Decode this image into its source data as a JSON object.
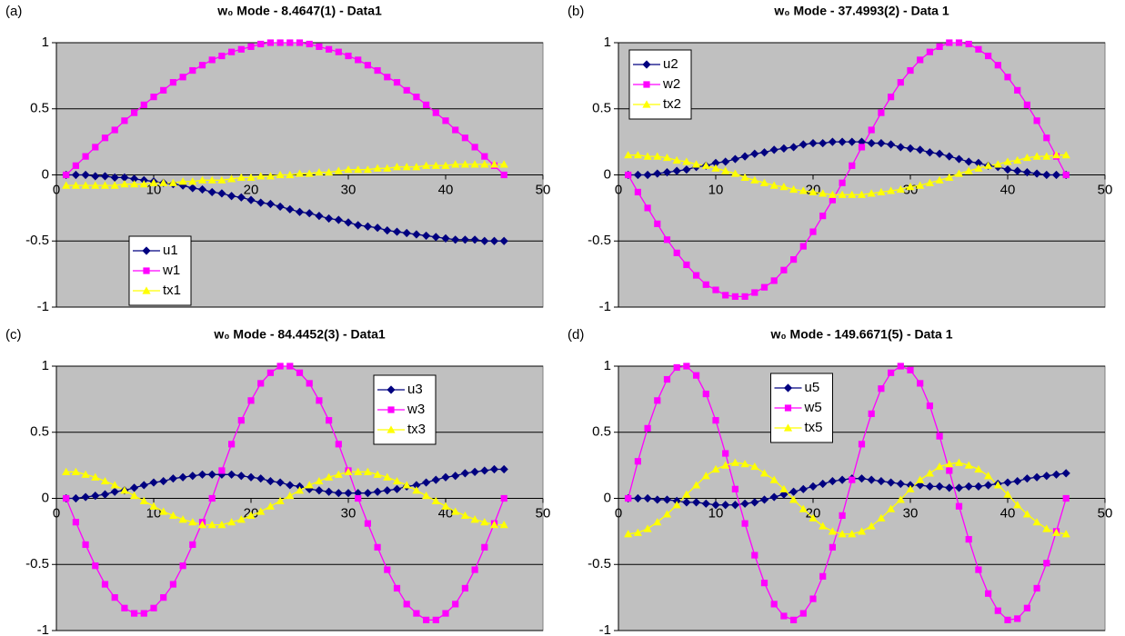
{
  "chart_data": [
    {
      "type": "line",
      "panel_label": "(a)",
      "title": "w₀ Mode - 8.4647(1) - Data1",
      "x": [
        1,
        2,
        3,
        4,
        5,
        6,
        7,
        8,
        9,
        10,
        11,
        12,
        13,
        14,
        15,
        16,
        17,
        18,
        19,
        20,
        21,
        22,
        23,
        24,
        25,
        26,
        27,
        28,
        29,
        30,
        31,
        32,
        33,
        34,
        35,
        36,
        37,
        38,
        39,
        40,
        41,
        42,
        43,
        44,
        45,
        46
      ],
      "series": [
        {
          "name": "u1",
          "color": "#000080",
          "marker": "diamond",
          "values": [
            0,
            0,
            0,
            -0.01,
            -0.01,
            -0.02,
            -0.02,
            -0.03,
            -0.04,
            -0.05,
            -0.06,
            -0.07,
            -0.08,
            -0.1,
            -0.11,
            -0.13,
            -0.14,
            -0.16,
            -0.17,
            -0.19,
            -0.21,
            -0.22,
            -0.24,
            -0.26,
            -0.28,
            -0.29,
            -0.31,
            -0.33,
            -0.34,
            -0.36,
            -0.38,
            -0.39,
            -0.4,
            -0.42,
            -0.43,
            -0.44,
            -0.45,
            -0.46,
            -0.47,
            -0.48,
            -0.49,
            -0.49,
            -0.49,
            -0.5,
            -0.5,
            -0.5
          ]
        },
        {
          "name": "w1",
          "color": "#ff00ff",
          "marker": "square",
          "values": [
            0,
            0.07,
            0.14,
            0.21,
            0.28,
            0.34,
            0.41,
            0.47,
            0.53,
            0.59,
            0.64,
            0.7,
            0.74,
            0.79,
            0.83,
            0.87,
            0.9,
            0.93,
            0.95,
            0.97,
            0.99,
            1,
            1,
            1,
            1,
            0.99,
            0.97,
            0.95,
            0.93,
            0.9,
            0.87,
            0.83,
            0.79,
            0.74,
            0.7,
            0.64,
            0.59,
            0.53,
            0.47,
            0.41,
            0.34,
            0.28,
            0.21,
            0.14,
            0.07,
            0
          ]
        },
        {
          "name": "tx1",
          "color": "#ffff00",
          "marker": "triangle",
          "values": [
            -0.08,
            -0.08,
            -0.08,
            -0.08,
            -0.08,
            -0.08,
            -0.07,
            -0.07,
            -0.07,
            -0.06,
            -0.06,
            -0.06,
            -0.05,
            -0.05,
            -0.04,
            -0.04,
            -0.04,
            -0.03,
            -0.02,
            -0.02,
            -0.01,
            -0.01,
            0,
            0,
            0.01,
            0.01,
            0.02,
            0.02,
            0.03,
            0.04,
            0.04,
            0.04,
            0.05,
            0.05,
            0.06,
            0.06,
            0.06,
            0.07,
            0.07,
            0.07,
            0.08,
            0.08,
            0.08,
            0.08,
            0.08,
            0.08
          ]
        }
      ],
      "xlim": [
        0,
        50
      ],
      "xticks": [
        0,
        10,
        20,
        30,
        40,
        50
      ],
      "ylim": [
        -1,
        1
      ],
      "yticks": [
        -1,
        -0.5,
        0,
        0.5,
        1
      ],
      "grid": true,
      "legend": "lower left"
    },
    {
      "type": "line",
      "panel_label": "(b)",
      "title": "w₀ Mode - 37.4993(2) - Data 1",
      "x": [
        1,
        2,
        3,
        4,
        5,
        6,
        7,
        8,
        9,
        10,
        11,
        12,
        13,
        14,
        15,
        16,
        17,
        18,
        19,
        20,
        21,
        22,
        23,
        24,
        25,
        26,
        27,
        28,
        29,
        30,
        31,
        32,
        33,
        34,
        35,
        36,
        37,
        38,
        39,
        40,
        41,
        42,
        43,
        44,
        45,
        46
      ],
      "series": [
        {
          "name": "u2",
          "color": "#000080",
          "marker": "diamond",
          "values": [
            0,
            0,
            0,
            0.01,
            0.02,
            0.03,
            0.04,
            0.06,
            0.07,
            0.09,
            0.1,
            0.12,
            0.14,
            0.16,
            0.17,
            0.19,
            0.2,
            0.21,
            0.23,
            0.24,
            0.24,
            0.25,
            0.25,
            0.25,
            0.25,
            0.24,
            0.24,
            0.23,
            0.21,
            0.2,
            0.19,
            0.17,
            0.16,
            0.14,
            0.12,
            0.1,
            0.09,
            0.07,
            0.06,
            0.04,
            0.03,
            0.02,
            0.01,
            0,
            0,
            0
          ]
        },
        {
          "name": "w2",
          "color": "#ff00ff",
          "marker": "square",
          "values": [
            0,
            -0.13,
            -0.25,
            -0.37,
            -0.49,
            -0.59,
            -0.68,
            -0.76,
            -0.83,
            -0.87,
            -0.91,
            -0.92,
            -0.92,
            -0.89,
            -0.85,
            -0.8,
            -0.72,
            -0.64,
            -0.54,
            -0.43,
            -0.31,
            -0.19,
            -0.06,
            0.07,
            0.21,
            0.34,
            0.47,
            0.59,
            0.7,
            0.79,
            0.87,
            0.93,
            0.97,
            1,
            1,
            0.99,
            0.95,
            0.9,
            0.83,
            0.74,
            0.64,
            0.53,
            0.41,
            0.28,
            0.14,
            0
          ]
        },
        {
          "name": "tx2",
          "color": "#ffff00",
          "marker": "triangle",
          "values": [
            0.15,
            0.15,
            0.14,
            0.14,
            0.13,
            0.11,
            0.1,
            0.08,
            0.07,
            0.05,
            0.03,
            0.01,
            -0.02,
            -0.04,
            -0.06,
            -0.08,
            -0.09,
            -0.11,
            -0.12,
            -0.13,
            -0.14,
            -0.15,
            -0.15,
            -0.15,
            -0.15,
            -0.14,
            -0.13,
            -0.12,
            -0.11,
            -0.09,
            -0.08,
            -0.06,
            -0.04,
            -0.02,
            0.01,
            0.03,
            0.05,
            0.07,
            0.08,
            0.1,
            0.11,
            0.13,
            0.14,
            0.14,
            0.15,
            0.15
          ]
        }
      ],
      "xlim": [
        0,
        50
      ],
      "xticks": [
        0,
        10,
        20,
        30,
        40,
        50
      ],
      "ylim": [
        -1,
        1
      ],
      "yticks": [
        -1,
        -0.5,
        0,
        0.5,
        1
      ],
      "grid": true,
      "legend": "upper left"
    },
    {
      "type": "line",
      "panel_label": "(c)",
      "title": "w₀ Mode - 84.4452(3) - Data1",
      "x": [
        1,
        2,
        3,
        4,
        5,
        6,
        7,
        8,
        9,
        10,
        11,
        12,
        13,
        14,
        15,
        16,
        17,
        18,
        19,
        20,
        21,
        22,
        23,
        24,
        25,
        26,
        27,
        28,
        29,
        30,
        31,
        32,
        33,
        34,
        35,
        36,
        37,
        38,
        39,
        40,
        41,
        42,
        43,
        44,
        45,
        46
      ],
      "series": [
        {
          "name": "u3",
          "color": "#000080",
          "marker": "diamond",
          "values": [
            0,
            0,
            0.01,
            0.02,
            0.03,
            0.05,
            0.06,
            0.08,
            0.1,
            0.12,
            0.13,
            0.15,
            0.16,
            0.17,
            0.18,
            0.18,
            0.18,
            0.18,
            0.17,
            0.16,
            0.15,
            0.13,
            0.12,
            0.1,
            0.09,
            0.07,
            0.06,
            0.05,
            0.04,
            0.04,
            0.04,
            0.04,
            0.05,
            0.06,
            0.07,
            0.09,
            0.1,
            0.12,
            0.14,
            0.16,
            0.17,
            0.19,
            0.2,
            0.21,
            0.22,
            0.22
          ]
        },
        {
          "name": "w3",
          "color": "#ff00ff",
          "marker": "square",
          "values": [
            0,
            -0.18,
            -0.35,
            -0.51,
            -0.65,
            -0.75,
            -0.83,
            -0.87,
            -0.87,
            -0.83,
            -0.75,
            -0.65,
            -0.51,
            -0.35,
            -0.18,
            0,
            0.21,
            0.41,
            0.59,
            0.74,
            0.87,
            0.95,
            1,
            1,
            0.95,
            0.87,
            0.74,
            0.59,
            0.41,
            0.21,
            0,
            -0.19,
            -0.37,
            -0.54,
            -0.68,
            -0.8,
            -0.87,
            -0.92,
            -0.92,
            -0.87,
            -0.8,
            -0.68,
            -0.54,
            -0.37,
            -0.19,
            0
          ]
        },
        {
          "name": "tx3",
          "color": "#ffff00",
          "marker": "triangle",
          "values": [
            0.2,
            0.2,
            0.18,
            0.16,
            0.13,
            0.1,
            0.06,
            0.02,
            -0.02,
            -0.06,
            -0.1,
            -0.13,
            -0.16,
            -0.18,
            -0.2,
            -0.2,
            -0.2,
            -0.18,
            -0.16,
            -0.13,
            -0.1,
            -0.06,
            -0.02,
            0.02,
            0.06,
            0.1,
            0.13,
            0.16,
            0.18,
            0.2,
            0.2,
            0.2,
            0.18,
            0.16,
            0.13,
            0.1,
            0.06,
            0.02,
            -0.02,
            -0.06,
            -0.1,
            -0.13,
            -0.16,
            -0.18,
            -0.2,
            -0.2
          ]
        }
      ],
      "xlim": [
        0,
        50
      ],
      "xticks": [
        0,
        10,
        20,
        30,
        40,
        50
      ],
      "ylim": [
        -1,
        1
      ],
      "yticks": [
        -1,
        -0.5,
        0,
        0.5,
        1
      ],
      "grid": true,
      "legend": "upper right"
    },
    {
      "type": "line",
      "panel_label": "(d)",
      "title": "w₀ Mode - 149.6671(5) - Data 1",
      "x": [
        1,
        2,
        3,
        4,
        5,
        6,
        7,
        8,
        9,
        10,
        11,
        12,
        13,
        14,
        15,
        16,
        17,
        18,
        19,
        20,
        21,
        22,
        23,
        24,
        25,
        26,
        27,
        28,
        29,
        30,
        31,
        32,
        33,
        34,
        35,
        36,
        37,
        38,
        39,
        40,
        41,
        42,
        43,
        44,
        45,
        46
      ],
      "series": [
        {
          "name": "u5",
          "color": "#000080",
          "marker": "diamond",
          "values": [
            0,
            0,
            0,
            -0.01,
            -0.01,
            -0.02,
            -0.03,
            -0.03,
            -0.04,
            -0.05,
            -0.05,
            -0.05,
            -0.04,
            -0.03,
            -0.01,
            0.01,
            0.03,
            0.05,
            0.07,
            0.09,
            0.11,
            0.13,
            0.14,
            0.15,
            0.15,
            0.14,
            0.13,
            0.12,
            0.11,
            0.1,
            0.1,
            0.09,
            0.09,
            0.08,
            0.08,
            0.09,
            0.09,
            0.1,
            0.11,
            0.12,
            0.13,
            0.15,
            0.16,
            0.17,
            0.18,
            0.19
          ]
        },
        {
          "name": "w5",
          "color": "#ff00ff",
          "marker": "square",
          "values": [
            0,
            0.28,
            0.53,
            0.74,
            0.9,
            0.99,
            1,
            0.93,
            0.79,
            0.59,
            0.34,
            0.07,
            -0.19,
            -0.43,
            -0.64,
            -0.8,
            -0.89,
            -0.92,
            -0.87,
            -0.76,
            -0.59,
            -0.37,
            -0.13,
            0.14,
            0.41,
            0.64,
            0.83,
            0.95,
            1,
            0.97,
            0.87,
            0.7,
            0.47,
            0.21,
            -0.06,
            -0.31,
            -0.54,
            -0.72,
            -0.85,
            -0.92,
            -0.91,
            -0.83,
            -0.68,
            -0.49,
            -0.25,
            0
          ]
        },
        {
          "name": "tx5",
          "color": "#ffff00",
          "marker": "triangle",
          "values": [
            -0.27,
            -0.26,
            -0.23,
            -0.18,
            -0.12,
            -0.05,
            0.03,
            0.1,
            0.17,
            0.22,
            0.25,
            0.27,
            0.26,
            0.24,
            0.19,
            0.14,
            0.07,
            -0.01,
            -0.08,
            -0.15,
            -0.21,
            -0.25,
            -0.27,
            -0.27,
            -0.25,
            -0.21,
            -0.15,
            -0.08,
            -0.01,
            0.07,
            0.14,
            0.19,
            0.24,
            0.26,
            0.27,
            0.25,
            0.22,
            0.17,
            0.1,
            0.03,
            -0.05,
            -0.12,
            -0.18,
            -0.23,
            -0.26,
            -0.27
          ]
        }
      ],
      "xlim": [
        0,
        50
      ],
      "xticks": [
        0,
        10,
        20,
        30,
        40,
        50
      ],
      "ylim": [
        -1,
        1
      ],
      "yticks": [
        -1,
        -0.5,
        0,
        0.5,
        1
      ],
      "grid": true,
      "legend": "upper center"
    }
  ]
}
